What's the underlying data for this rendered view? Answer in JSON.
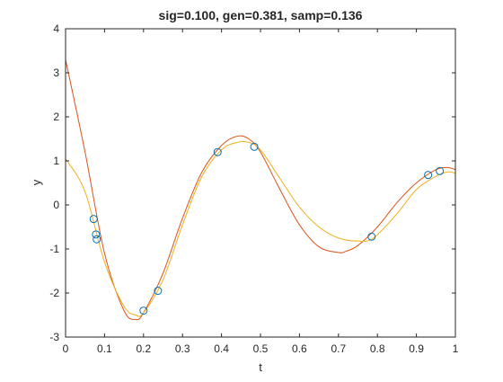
{
  "chart_data": {
    "type": "line",
    "title": "sig=0.100, gen=0.381, samp=0.136",
    "xlabel": "t",
    "ylabel": "y",
    "xlim": [
      0,
      1
    ],
    "ylim": [
      -3,
      4
    ],
    "x_ticks": [
      "0",
      "0.1",
      "0.2",
      "0.3",
      "0.4",
      "0.5",
      "0.6",
      "0.7",
      "0.8",
      "0.9",
      "1"
    ],
    "y_ticks": [
      "-3",
      "-2",
      "-1",
      "0",
      "1",
      "2",
      "3",
      "4"
    ],
    "grid": false,
    "series": [
      {
        "color": "#d95319",
        "x": [
          0.0,
          0.05,
          0.1,
          0.15,
          0.18,
          0.2,
          0.25,
          0.3,
          0.35,
          0.4,
          0.44,
          0.47,
          0.5,
          0.55,
          0.6,
          0.65,
          0.7,
          0.72,
          0.75,
          0.8,
          0.85,
          0.9,
          0.95,
          0.98,
          1.0
        ],
        "y": [
          3.3,
          1.2,
          -1.1,
          -2.4,
          -2.6,
          -2.45,
          -1.55,
          -0.3,
          0.75,
          1.35,
          1.56,
          1.5,
          1.2,
          0.35,
          -0.45,
          -0.95,
          -1.08,
          -1.05,
          -0.92,
          -0.5,
          0.05,
          0.5,
          0.8,
          0.85,
          0.8
        ]
      },
      {
        "color": "#edb120",
        "x": [
          0.0,
          0.05,
          0.1,
          0.15,
          0.18,
          0.2,
          0.25,
          0.3,
          0.35,
          0.4,
          0.44,
          0.47,
          0.5,
          0.55,
          0.6,
          0.65,
          0.7,
          0.75,
          0.79,
          0.85,
          0.9,
          0.95,
          0.98,
          1.0
        ],
        "y": [
          1.05,
          0.3,
          -1.3,
          -2.3,
          -2.5,
          -2.45,
          -1.7,
          -0.45,
          0.65,
          1.25,
          1.42,
          1.42,
          1.25,
          0.6,
          -0.05,
          -0.5,
          -0.75,
          -0.82,
          -0.75,
          -0.2,
          0.35,
          0.65,
          0.75,
          0.72
        ]
      }
    ],
    "samples": {
      "marker": "circle",
      "edge_color": "#0072bd",
      "x": [
        0.072,
        0.078,
        0.08,
        0.2,
        0.237,
        0.39,
        0.484,
        0.785,
        0.93,
        0.96
      ],
      "y": [
        -0.32,
        -0.67,
        -0.78,
        -2.4,
        -1.95,
        1.2,
        1.32,
        -0.72,
        0.68,
        0.77
      ]
    }
  }
}
